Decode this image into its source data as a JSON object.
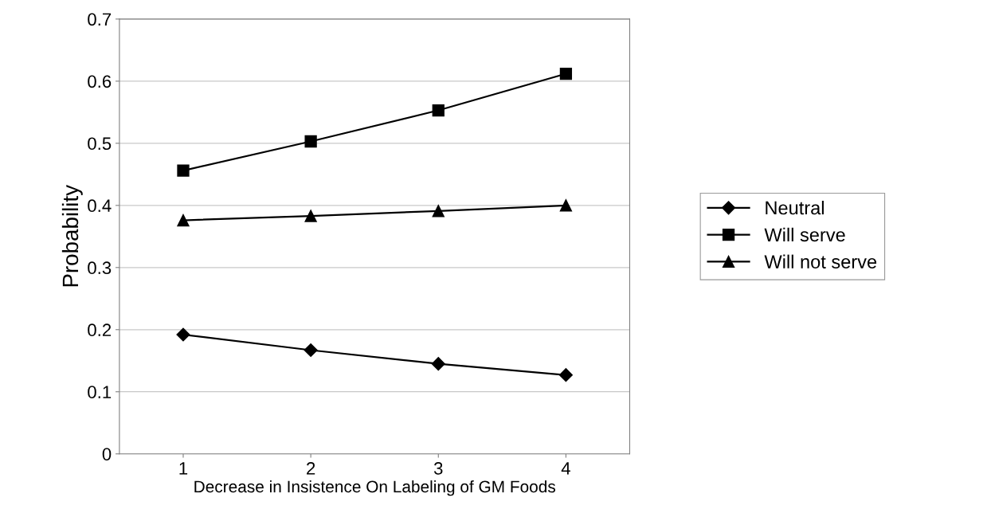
{
  "chart_data": {
    "type": "line",
    "xlabel": "Decrease in Insistence On Labeling of GM Foods",
    "ylabel": "Probability",
    "categories": [
      "1",
      "2",
      "3",
      "4"
    ],
    "series": [
      {
        "name": "Neutral",
        "color": "#000000",
        "marker": "diamond",
        "values": [
          0.192,
          0.167,
          0.145,
          0.127
        ]
      },
      {
        "name": "Will serve",
        "color": "#000000",
        "marker": "square",
        "values": [
          0.456,
          0.503,
          0.553,
          0.612
        ]
      },
      {
        "name": "Will not serve",
        "color": "#000000",
        "marker": "triangle",
        "values": [
          0.376,
          0.383,
          0.391,
          0.4
        ]
      }
    ],
    "ylim": [
      0,
      0.7
    ],
    "yticks": [
      0,
      0.1,
      0.2,
      0.3,
      0.4,
      0.5,
      0.6,
      0.7
    ],
    "grid": "y",
    "legend": "right",
    "line_style": "solid"
  }
}
